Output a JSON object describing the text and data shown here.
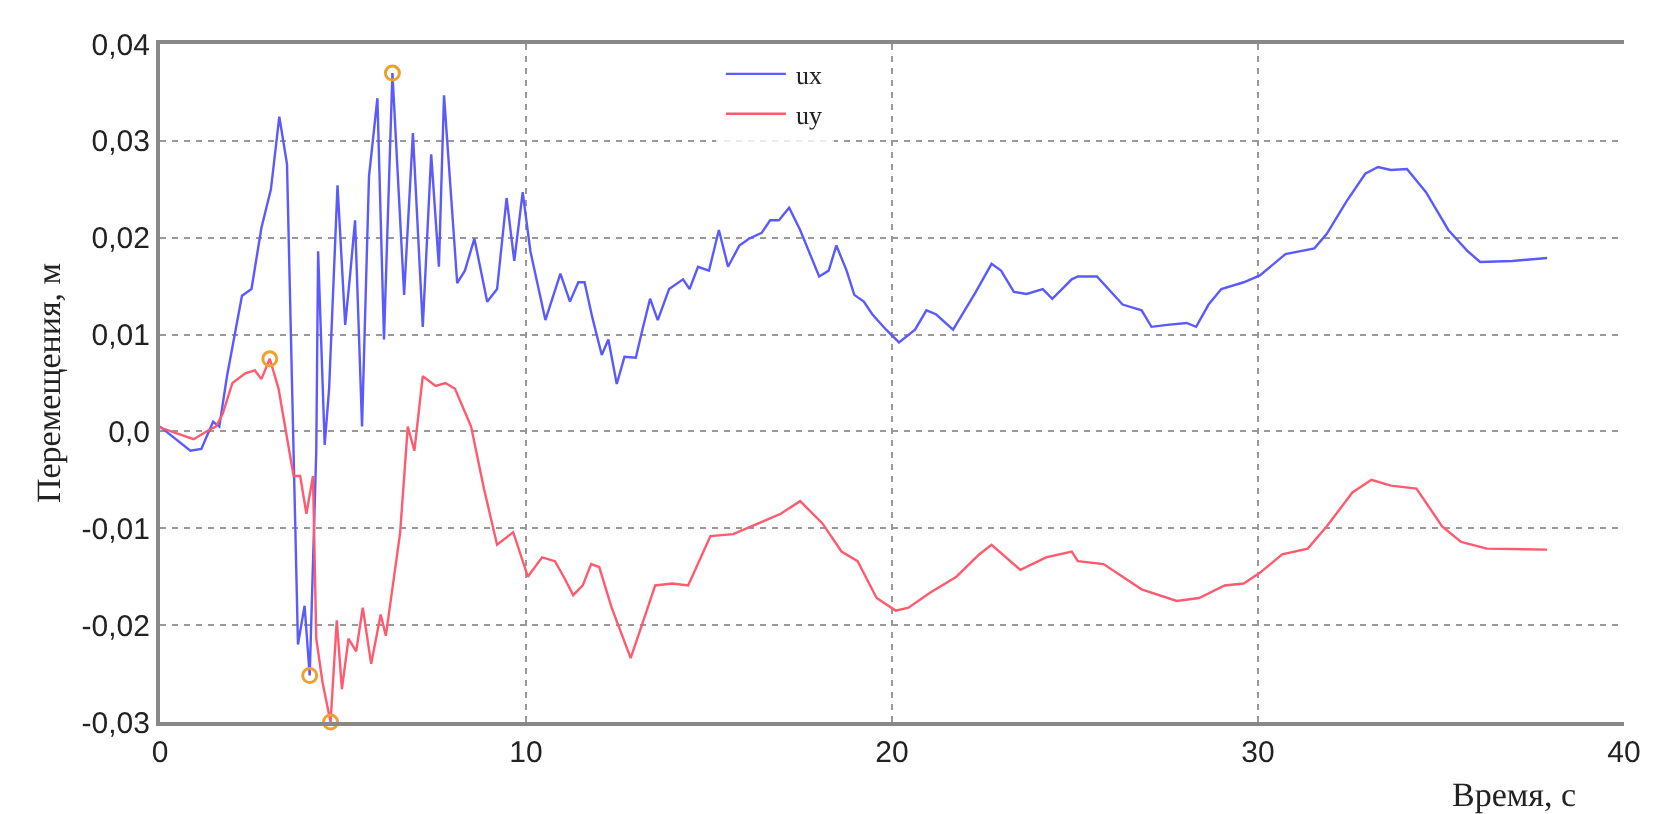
{
  "chart_data": {
    "type": "line",
    "xlabel": "Время, с",
    "ylabel": "Перемещения, м",
    "xlim": [
      0,
      40
    ],
    "xticks": [
      0,
      10,
      20,
      30,
      40
    ],
    "ylim": [
      -0.03,
      0.04
    ],
    "yticks": [
      {
        "value": -0.03,
        "label": "-0,03"
      },
      {
        "value": -0.02,
        "label": "-0,02"
      },
      {
        "value": -0.01,
        "label": "-0,01"
      },
      {
        "value": 0,
        "label": "0,0"
      },
      {
        "value": 0.01,
        "label": "0,01"
      },
      {
        "value": 0.02,
        "label": "0,02"
      },
      {
        "value": 0.03,
        "label": "0,03"
      },
      {
        "value": 0.04,
        "label": "0,04"
      }
    ],
    "grid": true,
    "legend": "top",
    "marker": "none",
    "line_style": "solid",
    "series": [
      {
        "name": "ux",
        "color": "#5a5aff",
        "x": [
          0,
          0.83,
          1.13,
          1.45,
          1.62,
          1.83,
          2.24,
          2.5,
          2.77,
          3.03,
          3.26,
          3.47,
          3.77,
          3.95,
          4.09,
          4.27,
          4.32,
          4.5,
          4.62,
          4.85,
          5.06,
          5.19,
          5.33,
          5.52,
          5.71,
          5.94,
          6.12,
          6.35,
          6.67,
          6.91,
          7.18,
          7.41,
          7.62,
          7.76,
          8.12,
          8.33,
          8.59,
          8.94,
          9.21,
          9.47,
          9.68,
          9.91,
          10.12,
          10.53,
          10.94,
          11.2,
          11.43,
          11.6,
          11.81,
          12.07,
          12.25,
          12.48,
          12.69,
          13.0,
          13.18,
          13.39,
          13.6,
          13.91,
          14.29,
          14.47,
          14.7,
          15.0,
          15.27,
          15.52,
          15.83,
          16.09,
          16.44,
          16.67,
          16.91,
          17.19,
          17.49,
          18.01,
          18.27,
          18.48,
          18.76,
          18.97,
          19.23,
          19.46,
          19.84,
          20.19,
          20.63,
          20.94,
          21.2,
          21.67,
          22.29,
          22.72,
          22.98,
          23.33,
          23.68,
          24.12,
          24.38,
          24.91,
          25.08,
          25.6,
          26.3,
          26.82,
          27.09,
          27.52,
          28.05,
          28.31,
          28.65,
          29.0,
          29.61,
          30.05,
          30.75,
          31.54,
          31.88,
          32.41,
          32.93,
          33.28,
          33.63,
          34.07,
          34.59,
          35.2,
          35.73,
          36.07,
          36.95,
          37.9
        ],
        "values": [
          0.0005,
          -0.002,
          -0.0018,
          0.001,
          0.0005,
          0.0057,
          0.014,
          0.0147,
          0.021,
          0.025,
          0.0325,
          0.0276,
          -0.022,
          -0.018,
          -0.0252,
          -0.002,
          0.0186,
          -0.0014,
          0.0044,
          0.0254,
          0.011,
          0.016,
          0.0218,
          0.0005,
          0.0263,
          0.0344,
          0.0095,
          0.037,
          0.0141,
          0.0308,
          0.0108,
          0.0286,
          0.017,
          0.0347,
          0.0153,
          0.0166,
          0.0199,
          0.0134,
          0.0147,
          0.0241,
          0.0176,
          0.0247,
          0.0186,
          0.0115,
          0.0163,
          0.0134,
          0.0154,
          0.0154,
          0.0118,
          0.0079,
          0.0095,
          0.0049,
          0.0077,
          0.0076,
          0.0105,
          0.0137,
          0.0115,
          0.0147,
          0.0157,
          0.0147,
          0.017,
          0.0166,
          0.0208,
          0.017,
          0.0192,
          0.0199,
          0.0205,
          0.0218,
          0.0218,
          0.0231,
          0.0208,
          0.016,
          0.0166,
          0.0192,
          0.0166,
          0.0141,
          0.0134,
          0.0121,
          0.0105,
          0.0092,
          0.0105,
          0.0125,
          0.0121,
          0.0105,
          0.0144,
          0.0173,
          0.0166,
          0.0144,
          0.0142,
          0.0147,
          0.0137,
          0.0157,
          0.016,
          0.016,
          0.0131,
          0.0125,
          0.0108,
          0.011,
          0.0112,
          0.0108,
          0.0131,
          0.0147,
          0.0154,
          0.0161,
          0.0183,
          0.0189,
          0.0204,
          0.0237,
          0.0266,
          0.0273,
          0.027,
          0.0271,
          0.0247,
          0.0208,
          0.0186,
          0.0175,
          0.0176,
          0.0179
        ]
      },
      {
        "name": "uy",
        "color": "#ff5a6e",
        "x": [
          0,
          0.92,
          1.36,
          1.53,
          1.71,
          1.98,
          2.33,
          2.59,
          2.77,
          3.0,
          3.24,
          3.65,
          3.83,
          4.0,
          4.18,
          4.27,
          4.44,
          4.66,
          4.83,
          4.97,
          5.15,
          5.36,
          5.54,
          5.77,
          6.03,
          6.17,
          6.56,
          6.77,
          6.95,
          7.18,
          7.53,
          7.8,
          8.06,
          8.5,
          8.85,
          9.21,
          9.65,
          10.05,
          10.44,
          10.79,
          11.03,
          11.29,
          11.55,
          11.78,
          12.0,
          12.34,
          12.86,
          13.21,
          13.53,
          14.0,
          14.43,
          15.04,
          15.66,
          16.35,
          16.96,
          17.49,
          18.1,
          18.62,
          19.06,
          19.58,
          20.1,
          20.45,
          21.06,
          21.76,
          22.38,
          22.72,
          23.51,
          24.21,
          24.91,
          25.08,
          25.78,
          26.82,
          27.78,
          28.39,
          29.09,
          29.61,
          30.05,
          30.66,
          31.36,
          31.88,
          32.58,
          33.1,
          33.63,
          34.33,
          35.03,
          35.55,
          36.25,
          37.9
        ],
        "values": [
          0.0004,
          -0.0008,
          0.0002,
          0.0005,
          0.0018,
          0.005,
          0.006,
          0.0063,
          0.0054,
          0.0075,
          0.0044,
          -0.0046,
          -0.0046,
          -0.0085,
          -0.0046,
          -0.0214,
          -0.0259,
          -0.03,
          -0.0195,
          -0.0266,
          -0.0214,
          -0.0227,
          -0.0182,
          -0.024,
          -0.0189,
          -0.0211,
          -0.0105,
          0.0005,
          -0.002,
          0.0057,
          0.0047,
          0.005,
          0.0044,
          0.0005,
          -0.0059,
          -0.0117,
          -0.0104,
          -0.015,
          -0.013,
          -0.0134,
          -0.015,
          -0.0169,
          -0.0159,
          -0.0137,
          -0.014,
          -0.0182,
          -0.0234,
          -0.0195,
          -0.0159,
          -0.0157,
          -0.0159,
          -0.0108,
          -0.0106,
          -0.0095,
          -0.0085,
          -0.0072,
          -0.0095,
          -0.0124,
          -0.0134,
          -0.0172,
          -0.0185,
          -0.0182,
          -0.0166,
          -0.015,
          -0.0127,
          -0.0117,
          -0.0143,
          -0.013,
          -0.0124,
          -0.0134,
          -0.0137,
          -0.0163,
          -0.0175,
          -0.0172,
          -0.0159,
          -0.0157,
          -0.0146,
          -0.0127,
          -0.0121,
          -0.0098,
          -0.0063,
          -0.005,
          -0.0056,
          -0.0059,
          -0.0098,
          -0.0114,
          -0.0121,
          -0.0122
        ]
      },
      {
        "type": "scatter",
        "marker": "circle",
        "color": "#f0a030",
        "x": [
          6.35,
          4.09,
          3.0,
          4.66
        ],
        "values": [
          0.037,
          -0.0252,
          0.0075,
          -0.03
        ]
      }
    ]
  }
}
